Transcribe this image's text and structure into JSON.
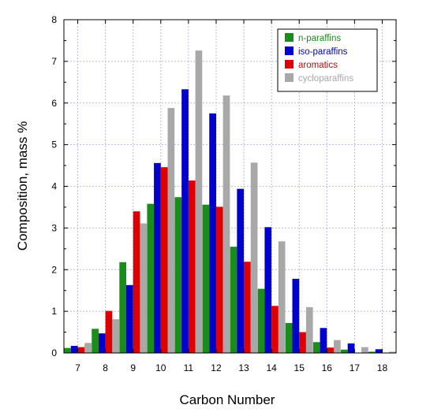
{
  "chart_data": {
    "type": "bar",
    "title": "",
    "xlabel": "Carbon Number",
    "ylabel": "Composition, mass %",
    "ylim": [
      0,
      8
    ],
    "yticks": [
      0,
      1,
      2,
      3,
      4,
      5,
      6,
      7,
      8
    ],
    "grid": true,
    "legend_position": "top-right",
    "categories": [
      "7",
      "8",
      "9",
      "10",
      "11",
      "12",
      "13",
      "14",
      "15",
      "16",
      "17",
      "18"
    ],
    "series": [
      {
        "name": "n-paraffins",
        "color": "#1a8c1a",
        "values": [
          0.12,
          0.58,
          2.18,
          3.58,
          3.74,
          3.56,
          2.55,
          1.54,
          0.72,
          0.26,
          0.08,
          0.03
        ]
      },
      {
        "name": "iso-paraffins",
        "color": "#0000cc",
        "values": [
          0.17,
          0.47,
          1.63,
          4.56,
          6.33,
          5.75,
          3.94,
          3.02,
          1.78,
          0.6,
          0.23,
          0.09
        ]
      },
      {
        "name": "aromatics",
        "color": "#dd0000",
        "values": [
          0.14,
          1.01,
          3.4,
          4.46,
          4.14,
          3.51,
          2.19,
          1.13,
          0.5,
          0.13,
          0.0,
          0.0
        ]
      },
      {
        "name": "cycloparaffins",
        "color": "#a8a8a8",
        "values": [
          0.24,
          0.81,
          3.11,
          5.88,
          7.26,
          6.18,
          4.57,
          2.68,
          1.1,
          0.31,
          0.14,
          0.03
        ]
      }
    ]
  }
}
